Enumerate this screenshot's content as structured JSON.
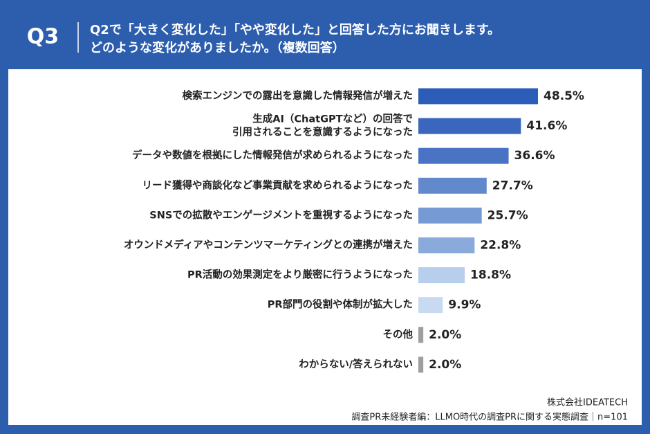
{
  "chart_data": {
    "type": "bar",
    "question_label": "Q3",
    "title": [
      "Q2で「大きく変化した」「やや変化した」と回答した方にお聞きします。",
      "どのような変化がありましたか。（複数回答）"
    ],
    "categories": [
      "検索エンジンでの露出を意識した情報発信が増えた",
      "生成AI（ChatGPTなど）の回答で\n引用されることを意識するようになった",
      "データや数値を根拠にした情報発信が求められるようになった",
      "リード獲得や商談化など事業貢献を求められるようになった",
      "SNSでの拡散やエンゲージメントを重視するようになった",
      "オウンドメディアやコンテンツマーケティングとの連携が増えた",
      "PR活動の効果測定をより厳密に行うようになった",
      "PR部門の役割や体制が拡大した",
      "その他",
      "わからない/答えられない"
    ],
    "values": [
      48.5,
      41.6,
      36.6,
      27.7,
      25.7,
      22.8,
      18.8,
      9.9,
      2.0,
      2.0
    ],
    "value_labels": [
      "48.5%",
      "41.6%",
      "36.6%",
      "27.7%",
      "25.7%",
      "22.8%",
      "18.8%",
      "9.9%",
      "2.0%",
      "2.0%"
    ],
    "colors": [
      "#2b5cb8",
      "#3a67bd",
      "#4a74c3",
      "#6189cc",
      "#759ad4",
      "#8aaadb",
      "#b7ceed",
      "#c7daf1",
      "#9e9e9e",
      "#9e9e9e"
    ],
    "source": [
      "株式会社IDEATECH",
      "調査PR未経験者編：LLMO時代の調査PRに関する実態調査｜n=101"
    ]
  }
}
